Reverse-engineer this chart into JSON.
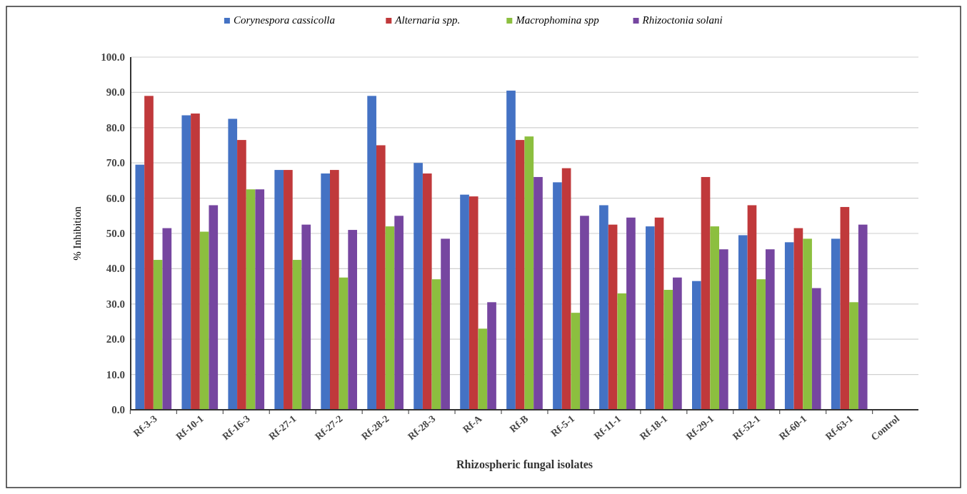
{
  "chart_data": {
    "type": "bar",
    "xlabel": "Rhizospheric fungal isolates",
    "ylabel": "% Inhibition",
    "categories": [
      "Rf-3-3",
      "Rf-10-1",
      "Rf-16-3",
      "Rf-27-1",
      "Rf-27-2",
      "Rf-28-2",
      "Rf-28-3",
      "Rf-A",
      "Rf-B",
      "Rf-5-1",
      "Rf-11-1",
      "Rf-18-1",
      "Rf-29-1",
      "Rf-52-1",
      "Rf-60-1",
      "Rf-63-1",
      "Control"
    ],
    "series": [
      {
        "name": "Corynespora cassicolla",
        "color": "#4472c4",
        "values": [
          69.5,
          83.5,
          82.5,
          68,
          67,
          89,
          70,
          61,
          90.5,
          64.5,
          58,
          52,
          36.5,
          49.5,
          47.5,
          48.5,
          null
        ]
      },
      {
        "name": "Alternaria spp.",
        "color": "#c0393b",
        "values": [
          89,
          84,
          76.5,
          68,
          68,
          75,
          67,
          60.5,
          76.5,
          68.5,
          52.5,
          54.5,
          66,
          58,
          51.5,
          57.5,
          null
        ]
      },
      {
        "name": "Macrophomina spp",
        "color": "#8cbf3f",
        "values": [
          42.5,
          50.5,
          62.5,
          42.5,
          37.5,
          52,
          37,
          23,
          77.5,
          27.5,
          33,
          34,
          52,
          37,
          48.5,
          30.5,
          null
        ]
      },
      {
        "name": "Rhizoctonia solani",
        "color": "#7646a0",
        "values": [
          51.5,
          58,
          62.5,
          52.5,
          51,
          55,
          48.5,
          30.5,
          66,
          55,
          54.5,
          37.5,
          45.5,
          45.5,
          34.5,
          52.5,
          null
        ]
      }
    ],
    "ylim": [
      0,
      100
    ],
    "yticks": [
      {
        "value": 0,
        "label": "0.0"
      },
      {
        "value": 10,
        "label": "10.0"
      },
      {
        "value": 20,
        "label": "20.0"
      },
      {
        "value": 30,
        "label": "30.0"
      },
      {
        "value": 40,
        "label": "40.0"
      },
      {
        "value": 50,
        "label": "50.0"
      },
      {
        "value": 60,
        "label": "60.0"
      },
      {
        "value": 70,
        "label": "70.0"
      },
      {
        "value": 80,
        "label": "80.0"
      },
      {
        "value": 90,
        "label": "90.0"
      },
      {
        "value": 100,
        "label": "100.0"
      }
    ],
    "grid": "y",
    "legend": "top"
  }
}
